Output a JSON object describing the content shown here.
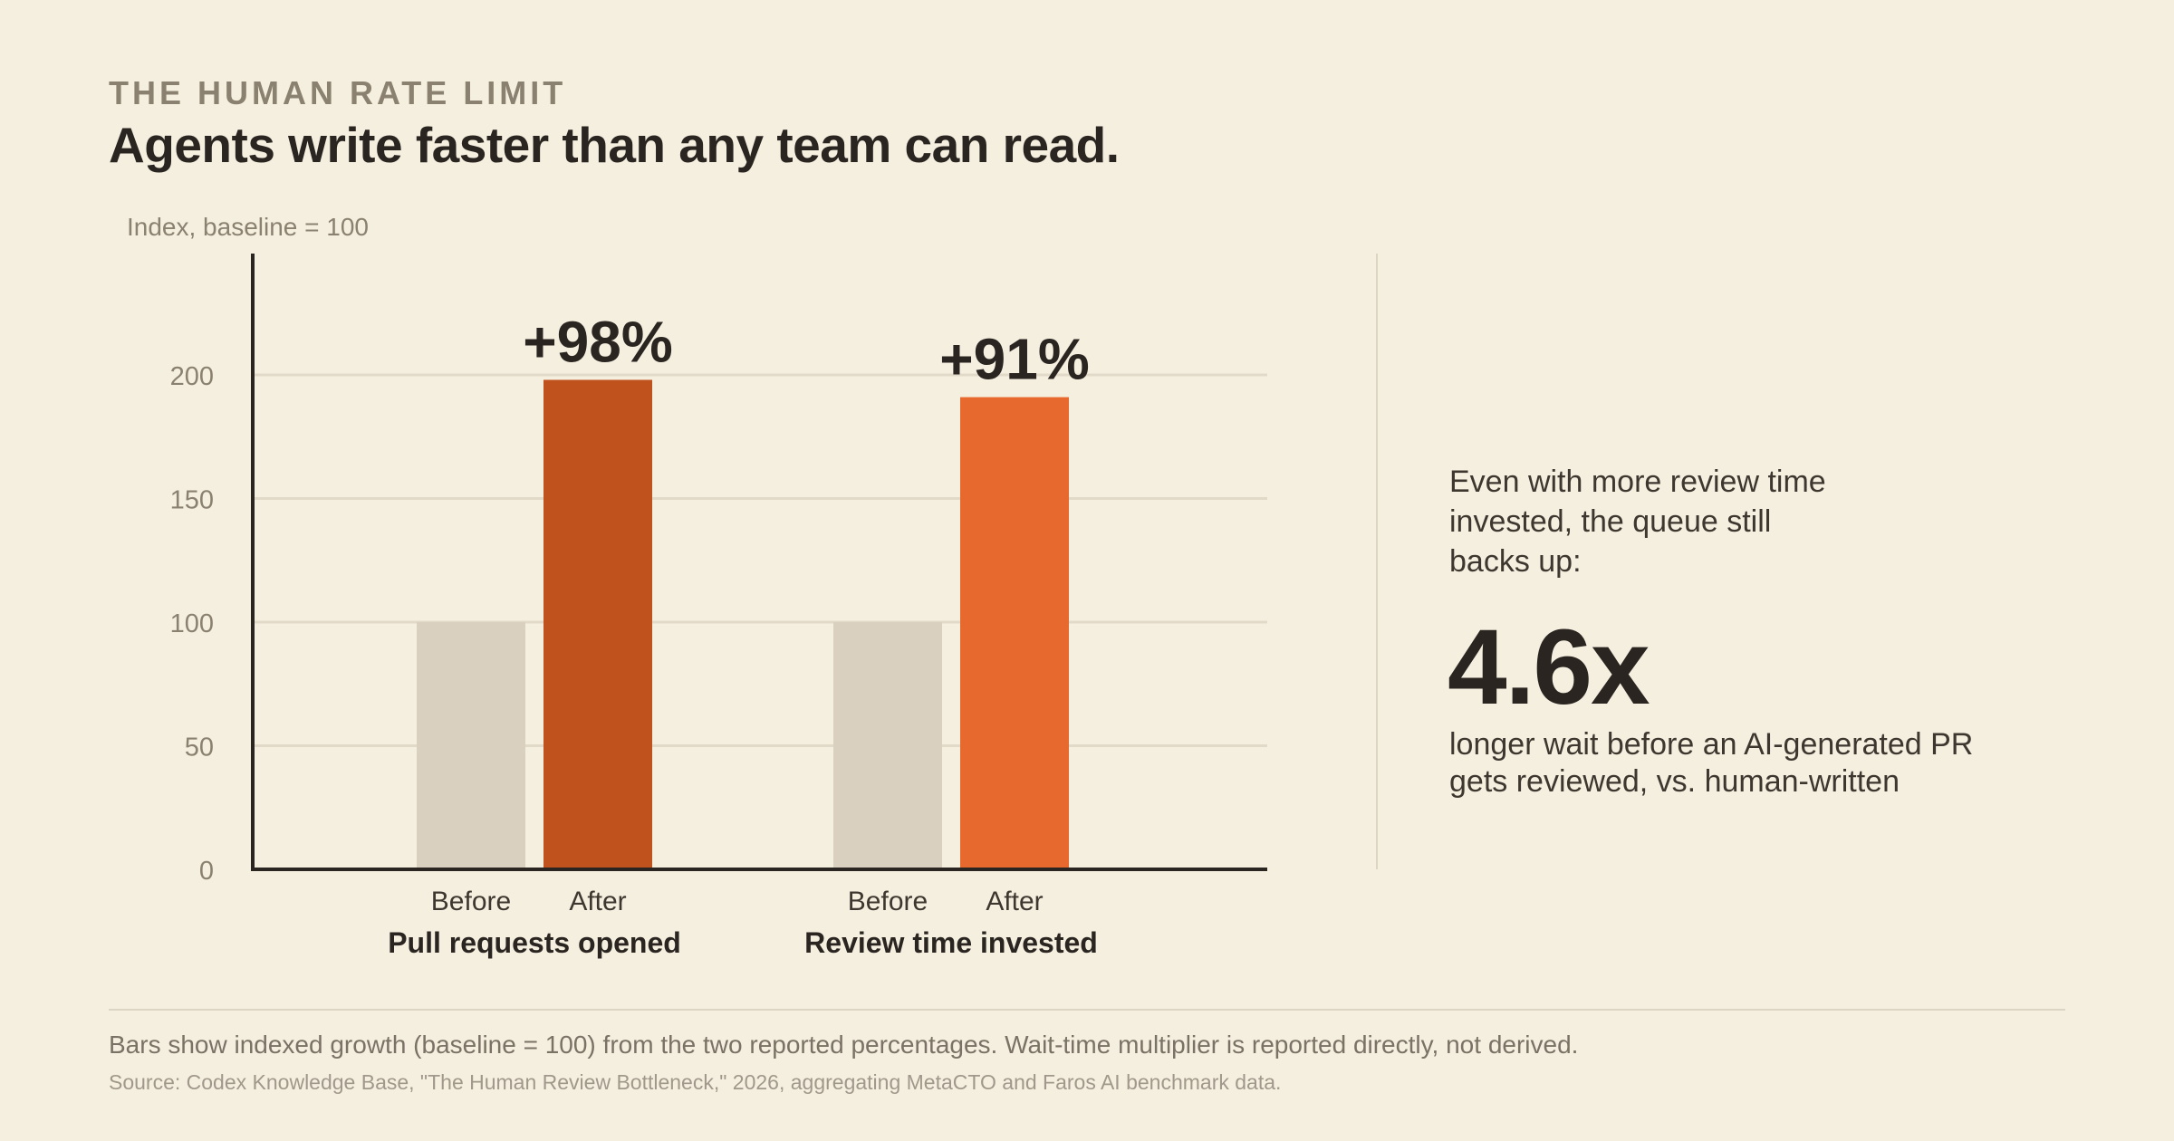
{
  "eyebrow": "THE HUMAN RATE LIMIT",
  "title": "Agents write faster than any team can read.",
  "chart_data": {
    "type": "bar",
    "ylabel": "Index, baseline = 100",
    "ylim": [
      0,
      250
    ],
    "yticks": [
      0,
      50,
      100,
      150,
      200
    ],
    "grid": true,
    "groups": [
      {
        "name": "Pull requests opened",
        "bars": [
          {
            "label": "Before",
            "value": 100,
            "color": "#d9d0c0"
          },
          {
            "label": "After",
            "value": 198,
            "color": "#c0521e",
            "annotation": "+98%"
          }
        ]
      },
      {
        "name": "Review time invested",
        "bars": [
          {
            "label": "Before",
            "value": 100,
            "color": "#d9d0c0"
          },
          {
            "label": "After",
            "value": 191,
            "color": "#e8692e",
            "annotation": "+91%"
          }
        ]
      }
    ]
  },
  "callout": {
    "intro": "Even with more review time invested, the queue still backs up:",
    "number": "4.6x",
    "description": "longer wait before an AI-generated PR gets reviewed, vs. human-written"
  },
  "footnote": "Bars show indexed growth (baseline = 100) from the two reported percentages. Wait-time multiplier is reported directly, not derived.",
  "source": "Source: Codex Knowledge Base, \"The Human Review Bottleneck,\" 2026, aggregating MetaCTO and Faros AI benchmark data."
}
